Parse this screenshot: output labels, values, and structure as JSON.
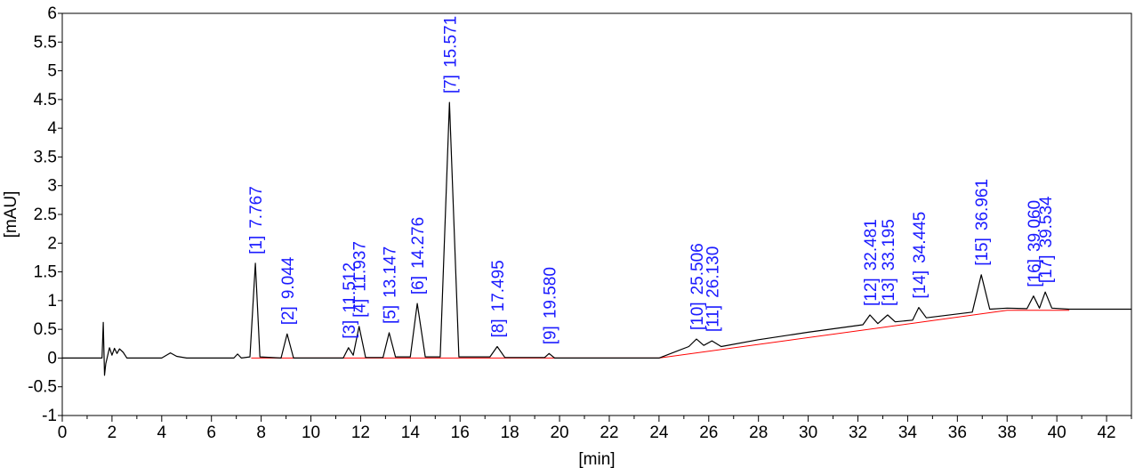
{
  "chart_data": {
    "type": "line",
    "xlabel": "[min]",
    "ylabel": "[mAU]",
    "xlim": [
      0,
      43
    ],
    "ylim": [
      -1,
      6
    ],
    "x_ticks": [
      "0",
      "2",
      "4",
      "6",
      "8",
      "10",
      "12",
      "14",
      "16",
      "18",
      "20",
      "22",
      "24",
      "26",
      "28",
      "30",
      "32",
      "34",
      "36",
      "38",
      "40",
      "42"
    ],
    "y_ticks": [
      "-1",
      "-0.5",
      "0",
      "0.5",
      "1",
      "1.5",
      "2",
      "2.5",
      "3",
      "3.5",
      "4",
      "4.5",
      "5",
      "5.5",
      "6"
    ],
    "grid": false,
    "colors": {
      "trace": "#000000",
      "baseline": "#ff0000",
      "labels": "#1a1aff"
    },
    "baseline_points": [
      [
        7.6,
        0
      ],
      [
        24,
        0
      ],
      [
        38,
        0.83
      ],
      [
        40.5,
        0.83
      ]
    ],
    "series": [
      {
        "values": [
          [
            0,
            0
          ],
          [
            1.6,
            0
          ],
          [
            1.65,
            0.62
          ],
          [
            1.7,
            -0.3
          ],
          [
            1.75,
            -0.1
          ],
          [
            1.9,
            0.18
          ],
          [
            2.0,
            0.05
          ],
          [
            2.1,
            0.17
          ],
          [
            2.2,
            0.08
          ],
          [
            2.3,
            0.16
          ],
          [
            2.45,
            0.1
          ],
          [
            2.6,
            0.0
          ],
          [
            3.0,
            0.0
          ],
          [
            4.0,
            0.0
          ],
          [
            4.35,
            0.09
          ],
          [
            4.6,
            0.03
          ],
          [
            5.0,
            0.0
          ],
          [
            6.9,
            0.0
          ],
          [
            7.05,
            0.07
          ],
          [
            7.2,
            0.0
          ],
          [
            7.55,
            0.02
          ],
          [
            7.767,
            1.65
          ],
          [
            7.95,
            0.02
          ],
          [
            8.8,
            0.0
          ],
          [
            9.044,
            0.42
          ],
          [
            9.3,
            0.0
          ],
          [
            11.3,
            0.0
          ],
          [
            11.512,
            0.18
          ],
          [
            11.7,
            0.05
          ],
          [
            11.937,
            0.55
          ],
          [
            12.2,
            0.01
          ],
          [
            12.9,
            0.01
          ],
          [
            13.147,
            0.44
          ],
          [
            13.4,
            0.02
          ],
          [
            14.0,
            0.02
          ],
          [
            14.276,
            0.95
          ],
          [
            14.6,
            0.02
          ],
          [
            15.2,
            0.02
          ],
          [
            15.571,
            4.45
          ],
          [
            15.95,
            0.02
          ],
          [
            17.2,
            0.02
          ],
          [
            17.495,
            0.2
          ],
          [
            17.8,
            0.01
          ],
          [
            19.4,
            0.01
          ],
          [
            19.58,
            0.08
          ],
          [
            19.8,
            0.0
          ],
          [
            24.0,
            0.0
          ],
          [
            25.2,
            0.2
          ],
          [
            25.506,
            0.33
          ],
          [
            25.8,
            0.22
          ],
          [
            26.13,
            0.3
          ],
          [
            26.5,
            0.2
          ],
          [
            28.0,
            0.32
          ],
          [
            30.0,
            0.45
          ],
          [
            32.2,
            0.58
          ],
          [
            32.481,
            0.75
          ],
          [
            32.8,
            0.6
          ],
          [
            33.195,
            0.75
          ],
          [
            33.5,
            0.63
          ],
          [
            34.2,
            0.66
          ],
          [
            34.445,
            0.88
          ],
          [
            34.75,
            0.7
          ],
          [
            36.6,
            0.8
          ],
          [
            36.961,
            1.45
          ],
          [
            37.3,
            0.85
          ],
          [
            38.0,
            0.87
          ],
          [
            38.8,
            0.86
          ],
          [
            39.06,
            1.08
          ],
          [
            39.3,
            0.87
          ],
          [
            39.534,
            1.15
          ],
          [
            39.8,
            0.87
          ],
          [
            40.5,
            0.85
          ],
          [
            43,
            0.85
          ]
        ]
      }
    ],
    "peaks": [
      {
        "number": "[1]",
        "rt": "7.767",
        "x": 7.767,
        "y": 1.65
      },
      {
        "number": "[2]",
        "rt": "9.044",
        "x": 9.044,
        "y": 0.42
      },
      {
        "number": "[3]",
        "rt": "11.512",
        "x": 11.512,
        "y": 0.18
      },
      {
        "number": "[4]",
        "rt": "11.937",
        "x": 11.937,
        "y": 0.55
      },
      {
        "number": "[5]",
        "rt": "13.147",
        "x": 13.147,
        "y": 0.44
      },
      {
        "number": "[6]",
        "rt": "14.276",
        "x": 14.276,
        "y": 0.95
      },
      {
        "number": "[7]",
        "rt": "15.571",
        "x": 15.571,
        "y": 4.45
      },
      {
        "number": "[8]",
        "rt": "17.495",
        "x": 17.495,
        "y": 0.2
      },
      {
        "number": "[9]",
        "rt": "19.580",
        "x": 19.58,
        "y": 0.08
      },
      {
        "number": "[10]",
        "rt": "25.506",
        "x": 25.506,
        "y": 0.33
      },
      {
        "number": "[11]",
        "rt": "26.130",
        "x": 26.13,
        "y": 0.3
      },
      {
        "number": "[12]",
        "rt": "32.481",
        "x": 32.481,
        "y": 0.75
      },
      {
        "number": "[13]",
        "rt": "33.195",
        "x": 33.195,
        "y": 0.75
      },
      {
        "number": "[14]",
        "rt": "34.445",
        "x": 34.445,
        "y": 0.88
      },
      {
        "number": "[15]",
        "rt": "36.961",
        "x": 36.961,
        "y": 1.45
      },
      {
        "number": "[16]",
        "rt": "39.060",
        "x": 39.06,
        "y": 1.08
      },
      {
        "number": "[17]",
        "rt": "39.534",
        "x": 39.534,
        "y": 1.15
      }
    ]
  }
}
